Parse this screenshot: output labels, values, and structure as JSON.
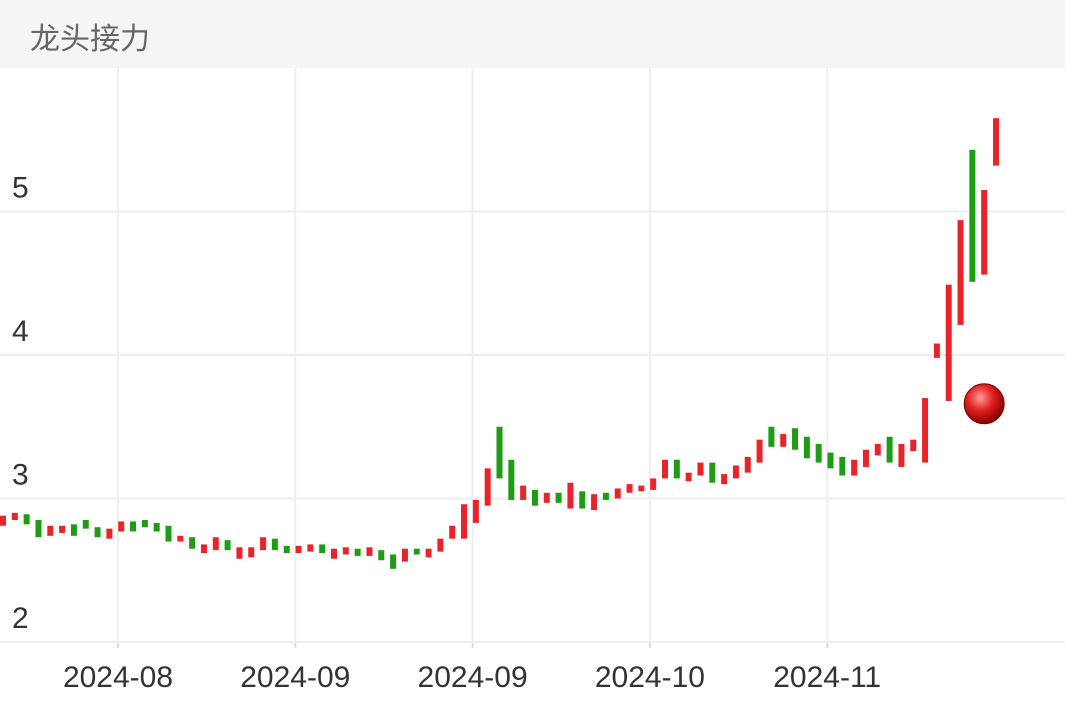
{
  "chart_data": {
    "type": "candlestick",
    "title": "龙头接力",
    "open": [
      2.81,
      2.85,
      2.89,
      2.85,
      2.74,
      2.76,
      2.82,
      2.85,
      2.8,
      2.72,
      2.77,
      2.84,
      2.85,
      2.83,
      2.81,
      2.7,
      2.73,
      2.62,
      2.64,
      2.71,
      2.58,
      2.59,
      2.64,
      2.72,
      2.67,
      2.62,
      2.63,
      2.68,
      2.58,
      2.61,
      2.65,
      2.6,
      2.64,
      2.61,
      2.56,
      2.65,
      2.59,
      2.63,
      2.72,
      2.72,
      2.83,
      2.95,
      3.5,
      3.27,
      2.99,
      3.06,
      2.97,
      3.04,
      2.93,
      3.05,
      2.92,
      3.04,
      3.0,
      3.04,
      3.05,
      3.06,
      3.14,
      3.27,
      3.12,
      3.16,
      3.25,
      3.1,
      3.14,
      3.18,
      3.25,
      3.5,
      3.36,
      3.49,
      3.43,
      3.38,
      3.32,
      3.29,
      3.16,
      3.22,
      3.3,
      3.43,
      3.22,
      3.33,
      3.25,
      3.98,
      3.68,
      4.21,
      5.43,
      4.56,
      5.32
    ],
    "close": [
      2.88,
      2.9,
      2.82,
      2.73,
      2.81,
      2.81,
      2.74,
      2.79,
      2.73,
      2.79,
      2.84,
      2.77,
      2.8,
      2.77,
      2.7,
      2.74,
      2.65,
      2.68,
      2.73,
      2.64,
      2.66,
      2.66,
      2.73,
      2.64,
      2.62,
      2.67,
      2.68,
      2.62,
      2.65,
      2.66,
      2.6,
      2.66,
      2.57,
      2.51,
      2.65,
      2.61,
      2.65,
      2.72,
      2.81,
      2.96,
      2.99,
      3.21,
      3.14,
      2.99,
      3.09,
      2.95,
      3.04,
      2.97,
      3.11,
      2.93,
      3.03,
      2.99,
      3.07,
      3.1,
      3.09,
      3.14,
      3.27,
      3.14,
      3.18,
      3.25,
      3.11,
      3.17,
      3.23,
      3.29,
      3.41,
      3.36,
      3.45,
      3.34,
      3.28,
      3.25,
      3.21,
      3.16,
      3.27,
      3.34,
      3.38,
      3.25,
      3.38,
      3.41,
      3.7,
      4.08,
      4.49,
      4.94,
      4.51,
      5.15,
      5.65
    ],
    "up_color": "#e8242a",
    "down_color": "#1e9c14",
    "marker": {
      "index": 83,
      "value": 3.66
    },
    "ylim": [
      2,
      6
    ],
    "yticks": [
      2,
      3,
      4,
      5
    ],
    "x_labels": [
      "2024-08",
      "2024-09",
      "2024-09",
      "2024-10",
      "2024-11"
    ],
    "grid": true
  }
}
